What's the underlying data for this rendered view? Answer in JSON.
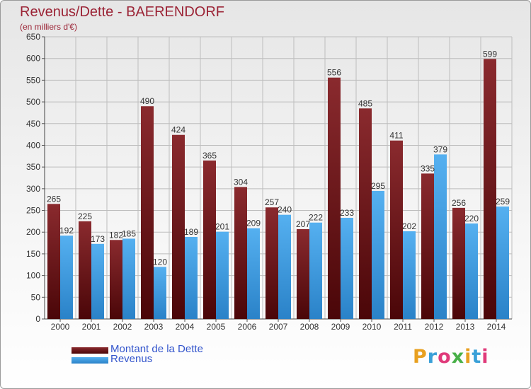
{
  "header": {
    "title": "Revenus/Dette - BAERENDORF",
    "subtitle": "(en milliers d'€)"
  },
  "colors": {
    "dette": "#7a1f24",
    "dette_dark": "#4a0608",
    "revenus": "#4aa3e6",
    "revenus_dark": "#2a82c8",
    "grid": "#bdbdbd",
    "title": "#9b2335"
  },
  "chart_data": {
    "type": "bar",
    "categories": [
      "2000",
      "2001",
      "2002",
      "2003",
      "2004",
      "2005",
      "2006",
      "2007",
      "2008",
      "2009",
      "2010",
      "2011",
      "2012",
      "2013",
      "2014"
    ],
    "series": [
      {
        "name": "Montant de la Dette",
        "values": [
          265,
          225,
          182,
          490,
          424,
          365,
          304,
          257,
          207,
          556,
          485,
          411,
          335,
          256,
          599
        ]
      },
      {
        "name": "Revenus",
        "values": [
          192,
          173,
          185,
          120,
          189,
          201,
          209,
          240,
          222,
          233,
          295,
          202,
          379,
          220,
          259
        ]
      }
    ],
    "ylim": [
      0,
      650
    ],
    "yticks": [
      0,
      50,
      100,
      150,
      200,
      250,
      300,
      350,
      400,
      450,
      500,
      550,
      600,
      650
    ],
    "grid": true,
    "legend_position": "bottom-left"
  },
  "legend": {
    "items": [
      {
        "label": "Montant de la Dette"
      },
      {
        "label": "Revenus"
      }
    ]
  },
  "logo": {
    "text": "Proxiti",
    "letter_colors": [
      "#e8a020",
      "#3aa0d8",
      "#e03a7a",
      "#48b048",
      "#e8a020",
      "#3aa0d8",
      "#e03a7a"
    ]
  }
}
